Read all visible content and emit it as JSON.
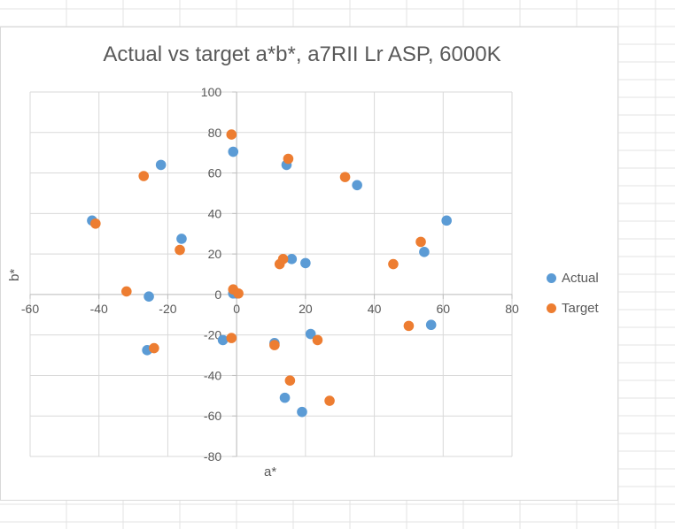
{
  "chart_data": {
    "type": "scatter",
    "title": "Actual vs target a*b*, a7RII Lr ASP, 6000K",
    "xlabel": "a*",
    "ylabel": "b*",
    "xlim": [
      -60,
      80
    ],
    "ylim": [
      -80,
      100
    ],
    "x_ticks": [
      -60,
      -40,
      -20,
      0,
      20,
      40,
      60,
      80
    ],
    "y_ticks": [
      -80,
      -60,
      -40,
      -20,
      0,
      20,
      40,
      60,
      80,
      100
    ],
    "grid": true,
    "legend_position": "right",
    "series": [
      {
        "name": "Actual",
        "color": "#5b9bd5",
        "points": [
          [
            -42,
            36.5
          ],
          [
            -22,
            64
          ],
          [
            -16,
            27.5
          ],
          [
            -25.5,
            -1
          ],
          [
            -26,
            -27.5
          ],
          [
            -1,
            70.5
          ],
          [
            -1,
            0.5
          ],
          [
            0,
            0.5
          ],
          [
            -4,
            -22.5
          ],
          [
            14.5,
            64
          ],
          [
            16,
            17.5
          ],
          [
            20,
            15.5
          ],
          [
            11,
            -24
          ],
          [
            21.5,
            -19.5
          ],
          [
            14,
            -51
          ],
          [
            19,
            -58
          ],
          [
            35,
            54
          ],
          [
            61,
            36.5
          ],
          [
            54.5,
            21
          ],
          [
            56.5,
            -15
          ]
        ]
      },
      {
        "name": "Target",
        "color": "#ed7d31",
        "points": [
          [
            -41,
            35
          ],
          [
            -27,
            58.5
          ],
          [
            -16.5,
            22
          ],
          [
            -32,
            1.5
          ],
          [
            -24,
            -26.5
          ],
          [
            -1.5,
            79
          ],
          [
            -1,
            2.5
          ],
          [
            0.5,
            0.5
          ],
          [
            -1.5,
            -21.5
          ],
          [
            15,
            67
          ],
          [
            13.5,
            17.5
          ],
          [
            12.5,
            15
          ],
          [
            11,
            -25
          ],
          [
            23.5,
            -22.5
          ],
          [
            15.5,
            -42.5
          ],
          [
            27,
            -52.5
          ],
          [
            31.5,
            58
          ],
          [
            53.5,
            26
          ],
          [
            45.5,
            15
          ],
          [
            50,
            -15.5
          ]
        ]
      }
    ]
  }
}
